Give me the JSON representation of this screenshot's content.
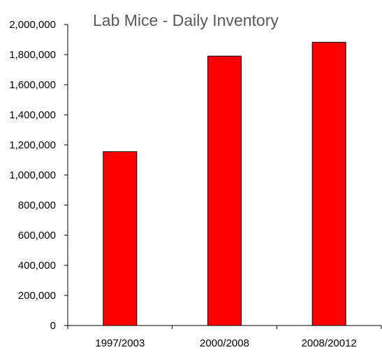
{
  "chart_data": {
    "type": "bar",
    "title": "Lab Mice - Daily Inventory",
    "xlabel": "",
    "ylabel": "",
    "categories": [
      "1997/2003",
      "2000/2008",
      "2008/20012"
    ],
    "values": [
      1155000,
      1790000,
      1882000
    ],
    "ylim": [
      0,
      2000000
    ],
    "yticks": [
      {
        "value": 0,
        "label": "0"
      },
      {
        "value": 200000,
        "label": "200,000"
      },
      {
        "value": 400000,
        "label": "400,000"
      },
      {
        "value": 600000,
        "label": "600,000"
      },
      {
        "value": 800000,
        "label": "800,000"
      },
      {
        "value": 1000000,
        "label": "1,000,000"
      },
      {
        "value": 1200000,
        "label": "1,200,000"
      },
      {
        "value": 1400000,
        "label": "1,400,000"
      },
      {
        "value": 1600000,
        "label": "1,600,000"
      },
      {
        "value": 1800000,
        "label": "1,800,000"
      },
      {
        "value": 2000000,
        "label": "2,000,000"
      }
    ],
    "grid": false,
    "legend": "none",
    "bar_color": "#ff0000",
    "bar_edge_color": "#000000"
  }
}
